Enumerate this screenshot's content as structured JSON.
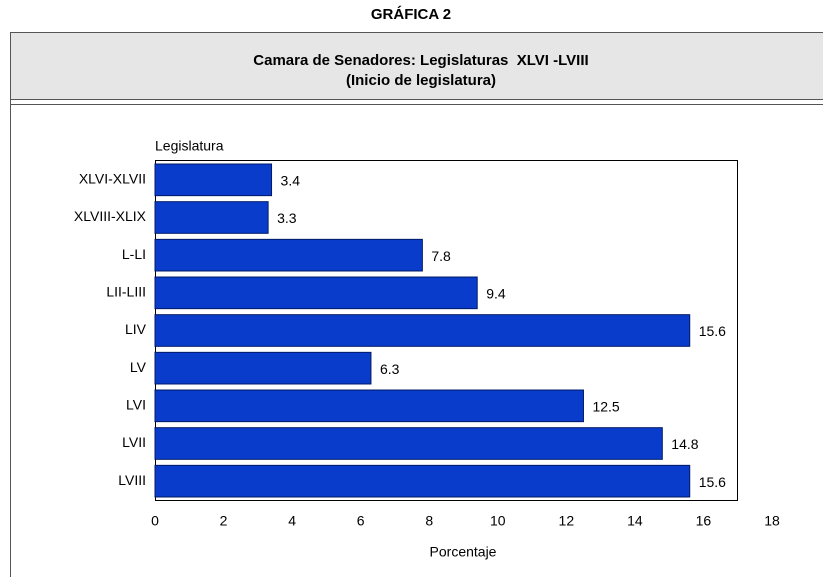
{
  "chart_data": {
    "type": "bar",
    "orientation": "horizontal",
    "figure_label": "GRÁFICA 2",
    "title": "Camara de Senadores: Legislaturas  XLVI -LVIII",
    "subtitle": "(Inicio de legislatura)",
    "y_label": "Legislatura",
    "x_label": "Porcentaje",
    "categories": [
      "XLVI-XLVII",
      "XLVIII-XLIX",
      "L-LI",
      "LII-LIII",
      "LIV",
      "LV",
      "LVI",
      "LVII",
      "LVIII"
    ],
    "values": [
      3.4,
      3.3,
      7.8,
      9.4,
      15.6,
      6.3,
      12.5,
      14.8,
      15.6
    ],
    "color": "#0a3ccc",
    "xlim": [
      0,
      18
    ],
    "xticks": [
      0,
      2,
      4,
      6,
      8,
      10,
      12,
      14,
      16,
      18
    ],
    "grid": false
  }
}
